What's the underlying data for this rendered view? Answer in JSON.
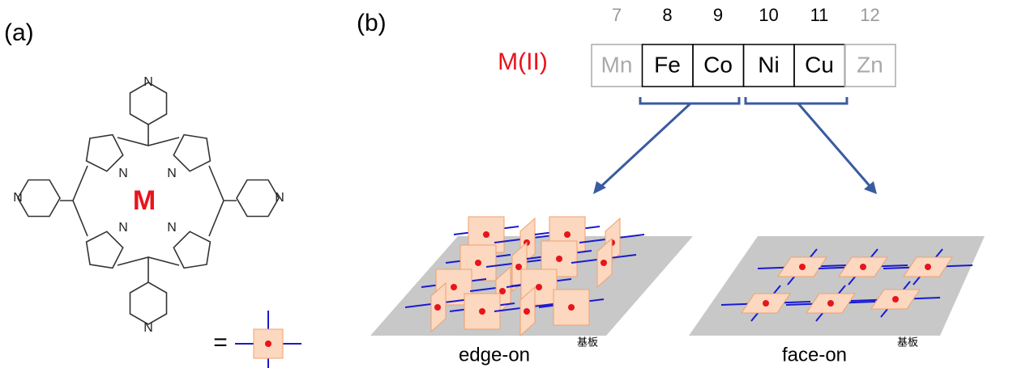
{
  "panel_a": {
    "label": "(a)",
    "metal": "M",
    "nitrogens": [
      "N",
      "N",
      "N",
      "N",
      "N",
      "N",
      "N",
      "N"
    ],
    "equals": "="
  },
  "panel_b": {
    "label": "(b)",
    "metal_label": "M(II)",
    "elements": [
      {
        "group": 7,
        "symbol": "Mn"
      },
      {
        "group": 8,
        "symbol": "Fe"
      },
      {
        "group": 9,
        "symbol": "Co"
      },
      {
        "group": 10,
        "symbol": "Ni"
      },
      {
        "group": 11,
        "symbol": "Cu"
      },
      {
        "group": 12,
        "symbol": "Zn"
      }
    ],
    "edge_on": {
      "label": "edge-on",
      "substrate": "基板"
    },
    "face_on": {
      "label": "face-on",
      "substrate": "基板"
    }
  }
}
